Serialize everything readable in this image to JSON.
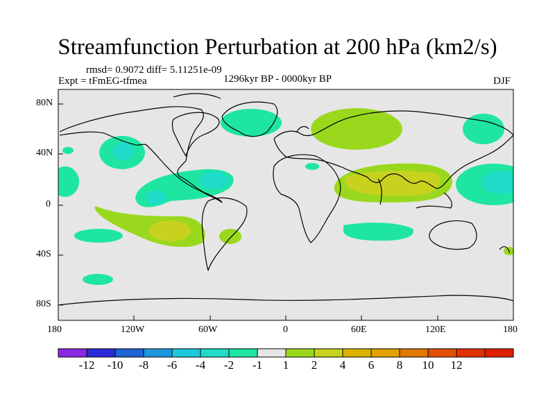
{
  "title": "Streamfunction Perturbation at 200 hPa (km2/s)",
  "stats": "rmsd= 0.9072 diff= 5.11251e-09",
  "experiment": "Expt = tFmEG-tfmea",
  "period": "1296kyr BP - 0000kyr BP",
  "season": "DJF",
  "axes": {
    "x_ticks": [
      "180",
      "120W",
      "60W",
      "0",
      "60E",
      "120E",
      "180"
    ],
    "y_ticks": [
      "80N",
      "40N",
      "0",
      "40S",
      "80S"
    ]
  },
  "colorbar": {
    "colors": [
      "#8a2be2",
      "#2a2ad8",
      "#1e64d2",
      "#1e96dc",
      "#1ec8dc",
      "#1edcc8",
      "#1ee6a0",
      "#e6e6e6",
      "#9ad81e",
      "#c8d21e",
      "#dcb400",
      "#e0a000",
      "#e07800",
      "#e05000",
      "#e03200",
      "#e01e00"
    ],
    "labels": [
      "-12",
      "-10",
      "-8",
      "-6",
      "-4",
      "-2",
      "-1",
      "1",
      "2",
      "4",
      "6",
      "8",
      "10",
      "12"
    ]
  }
}
